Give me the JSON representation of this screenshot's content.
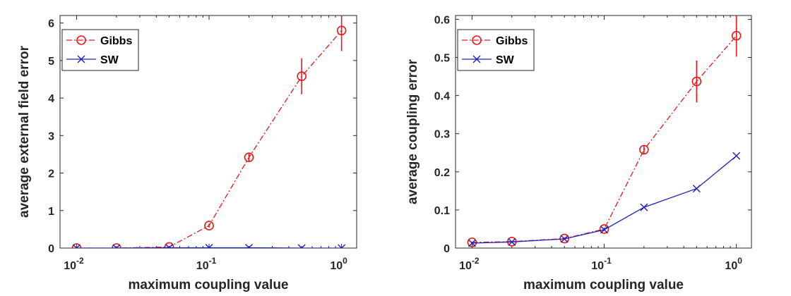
{
  "chart_data": [
    {
      "type": "line",
      "title": "",
      "xlabel": "maximum coupling value",
      "ylabel": "average external field error",
      "xscale": "log",
      "xlim": [
        0.0075,
        1.3
      ],
      "ylim": [
        0,
        6.2
      ],
      "grid": false,
      "legend_position": "top-left",
      "x": [
        0.01,
        0.02,
        0.05,
        0.1,
        0.2,
        0.5,
        1
      ],
      "x_ticks": [
        {
          "value": 0.01,
          "base": "10",
          "exp": "-2"
        },
        {
          "value": 0.1,
          "base": "10",
          "exp": "-1"
        },
        {
          "value": 1,
          "base": "10",
          "exp": "0"
        }
      ],
      "y_ticks": [
        {
          "value": 0,
          "label": "0"
        },
        {
          "value": 1,
          "label": "1"
        },
        {
          "value": 2,
          "label": "2"
        },
        {
          "value": 3,
          "label": "3"
        },
        {
          "value": 4,
          "label": "4"
        },
        {
          "value": 5,
          "label": "5"
        },
        {
          "value": 6,
          "label": "6"
        }
      ],
      "series": [
        {
          "name": "Gibbs",
          "values": [
            0.0,
            0.0,
            0.03,
            0.6,
            2.42,
            4.58,
            5.8
          ],
          "errors": [
            0.0,
            0.0,
            0.02,
            0.05,
            0.12,
            0.48,
            0.55
          ],
          "color": "#e31a1c",
          "style": "dashdot",
          "marker": "circle"
        },
        {
          "name": "SW",
          "values": [
            0.0,
            0.0,
            0.01,
            0.01,
            0.01,
            0.0,
            0.0
          ],
          "errors": null,
          "color": "#1f1fbf",
          "style": "solid",
          "marker": "x"
        }
      ]
    },
    {
      "type": "line",
      "title": "",
      "xlabel": "maximum coupling value",
      "ylabel": "average coupling error",
      "xscale": "log",
      "xlim": [
        0.0075,
        1.3
      ],
      "ylim": [
        0,
        0.61
      ],
      "grid": false,
      "legend_position": "top-left",
      "x": [
        0.01,
        0.02,
        0.05,
        0.1,
        0.2,
        0.5,
        1
      ],
      "x_ticks": [
        {
          "value": 0.01,
          "base": "10",
          "exp": "-2"
        },
        {
          "value": 0.1,
          "base": "10",
          "exp": "-1"
        },
        {
          "value": 1,
          "base": "10",
          "exp": "0"
        }
      ],
      "y_ticks": [
        {
          "value": 0,
          "label": "0"
        },
        {
          "value": 0.1,
          "label": "0.1"
        },
        {
          "value": 0.2,
          "label": "0.2"
        },
        {
          "value": 0.3,
          "label": "0.3"
        },
        {
          "value": 0.4,
          "label": "0.4"
        },
        {
          "value": 0.5,
          "label": "0.5"
        },
        {
          "value": 0.6,
          "label": "0.6"
        }
      ],
      "series": [
        {
          "name": "Gibbs",
          "values": [
            0.015,
            0.017,
            0.025,
            0.05,
            0.258,
            0.437,
            0.557
          ],
          "errors": [
            0.002,
            0.002,
            0.003,
            0.004,
            0.012,
            0.055,
            0.055
          ],
          "color": "#e31a1c",
          "style": "dashdot",
          "marker": "circle"
        },
        {
          "name": "SW",
          "values": [
            0.013,
            0.016,
            0.024,
            0.048,
            0.107,
            0.156,
            0.242
          ],
          "errors": null,
          "color": "#1f1fbf",
          "style": "solid",
          "marker": "x"
        }
      ]
    }
  ]
}
